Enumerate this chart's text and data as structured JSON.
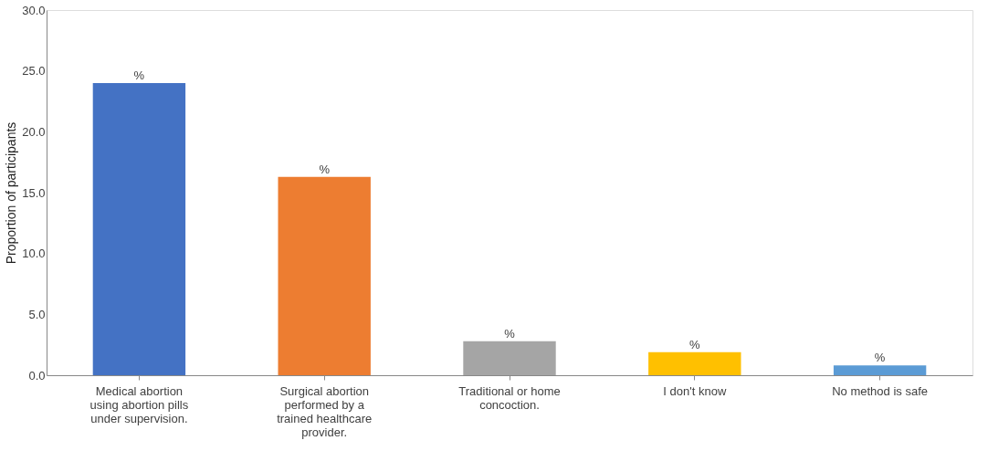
{
  "chart_data": {
    "type": "bar",
    "ylabel": "Proportion of participants",
    "categories": [
      "Medical abortion\nusing abortion pills\nunder supervision.",
      "Surgical abortion\nperformed by a\ntrained healthcare\nprovider.",
      "Traditional or home\nconcoction.",
      "I don't know",
      "No method is safe"
    ],
    "values": [
      24.0,
      16.3,
      2.8,
      1.9,
      0.8
    ],
    "colors": [
      "#4472c4",
      "#ed7d31",
      "#a5a5a5",
      "#ffc000",
      "#5b9bd5"
    ],
    "value_labels": [
      "%",
      "%",
      "%",
      "%",
      "%"
    ],
    "ylim": [
      0,
      30
    ],
    "yticks": [
      {
        "value": 0,
        "label": "0.0"
      },
      {
        "value": 5,
        "label": "5.0"
      },
      {
        "value": 10,
        "label": "10.0"
      },
      {
        "value": 15,
        "label": "15.0"
      },
      {
        "value": 20,
        "label": "20.0"
      },
      {
        "value": 25,
        "label": "25.0"
      },
      {
        "value": 30,
        "label": "30.0"
      }
    ],
    "grid": false
  }
}
